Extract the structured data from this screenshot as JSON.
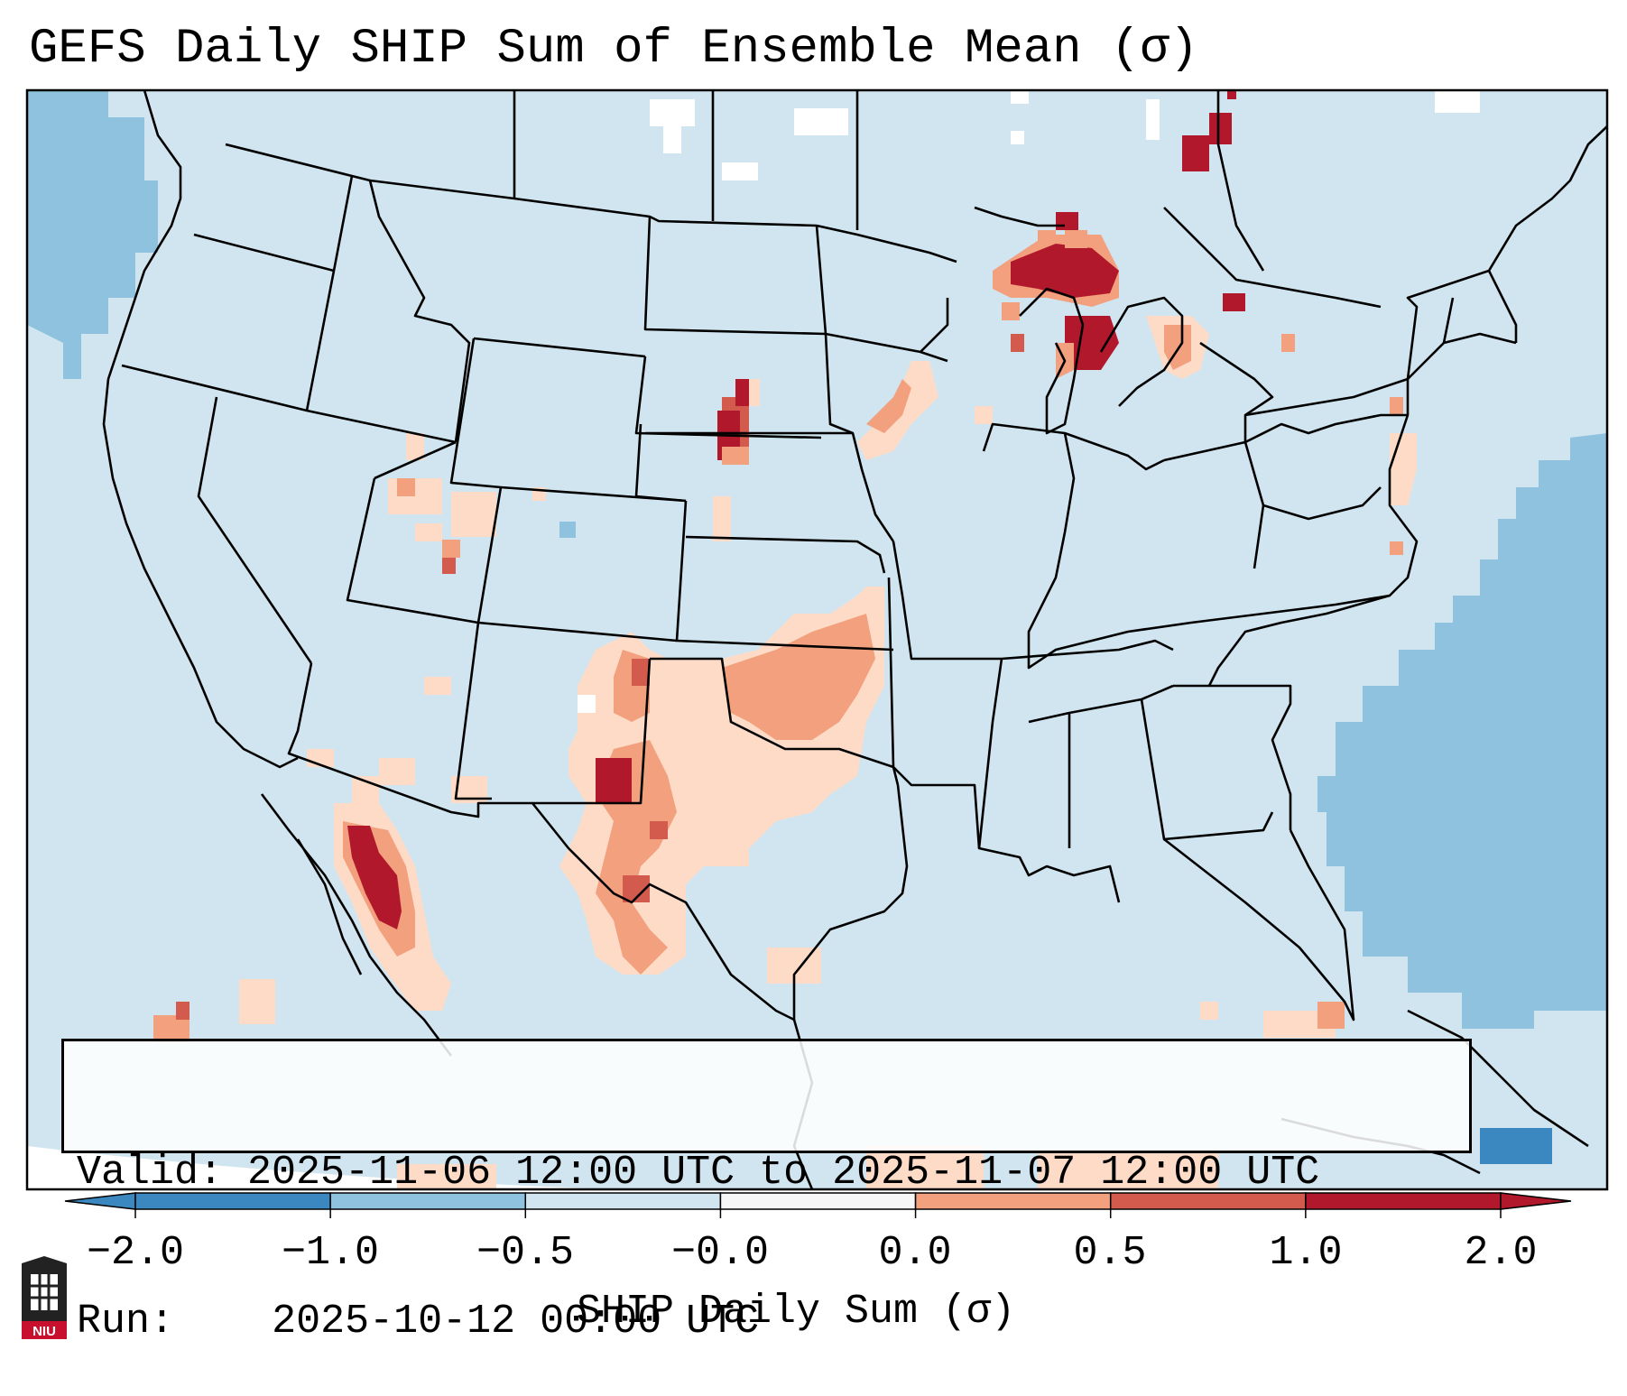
{
  "title": "GEFS Daily SHIP Sum of Ensemble Mean (σ)",
  "info": {
    "valid_label": "Valid:",
    "valid_value": "2025-11-06 12:00 UTC to 2025-11-07 12:00 UTC",
    "run_label": "Run:",
    "run_value": "2025-10-12 00:00 UTC"
  },
  "colorbar": {
    "label": "SHIP Daily Sum (σ)",
    "ticks": [
      "−2.0",
      "−1.0",
      "−0.5",
      "−0.0",
      "0.0",
      "0.5",
      "1.0",
      "2.0"
    ],
    "colors": [
      "#3b88c0",
      "#8fc2de",
      "#d1e5f0",
      "#f7f7f7",
      "#fddbc7",
      "#f2a07d",
      "#d25b4d",
      "#b2182b"
    ],
    "extend": "both"
  },
  "map": {
    "extent": "CONUS",
    "background_color": "#d1e5f0",
    "regions": [
      {
        "name": "Southwest / Southern Plains",
        "level": "0.0 to 1.0"
      },
      {
        "name": "Upper Great Lakes",
        "level": "above 2.0"
      },
      {
        "name": "Gulf of California / Sonora",
        "level": "above 2.0"
      },
      {
        "name": "Western Atlantic",
        "level": "-1.0 to -0.5"
      }
    ]
  },
  "logo": {
    "text": "NIU"
  }
}
